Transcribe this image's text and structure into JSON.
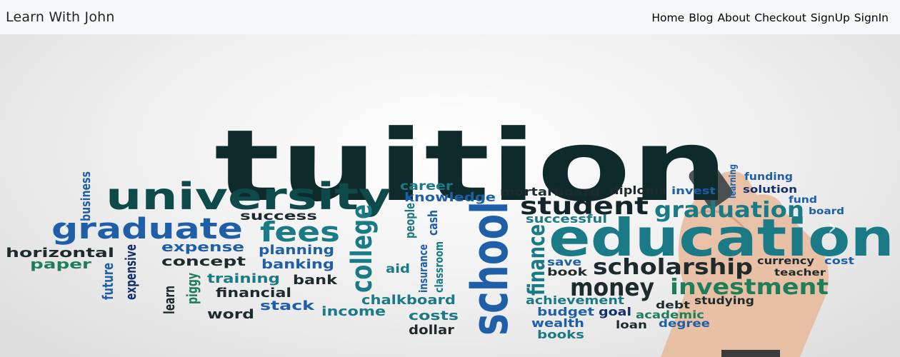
{
  "nav": {
    "brand": "Learn With John",
    "links": [
      "Home",
      "Blog",
      "About",
      "Checkout",
      "SignUp",
      "SignIn"
    ]
  },
  "carousel": {
    "words": {
      "tuition": "tuition",
      "university": "university",
      "graduate": "graduate",
      "fees": "fees",
      "education": "education",
      "student": "student",
      "graduation": "graduation",
      "school": "school",
      "college": "college",
      "scholarship": "scholarship",
      "money": "money",
      "investment": "investment",
      "finance": "finance",
      "horizontal": "horizontal",
      "paper": "paper",
      "business": "business",
      "success": "success",
      "expense": "expense",
      "concept": "concept",
      "planning": "planning",
      "banking": "banking",
      "training": "training",
      "bank": "bank",
      "financial": "financial",
      "stack": "stack",
      "income": "income",
      "word": "word",
      "chalkboard": "chalkboard",
      "costs": "costs",
      "dollar": "dollar",
      "aid": "aid",
      "insurance": "insurance",
      "classroom": "classroom",
      "people": "people",
      "cash": "cash",
      "career": "career",
      "knowledge": "knowledge",
      "mortarboard": "mortarboard",
      "diploma": "diploma",
      "invest": "invest",
      "learning": "learning",
      "funding": "funding",
      "solution": "solution",
      "fund": "fund",
      "board": "board",
      "successful": "successful",
      "save": "save",
      "book": "book",
      "achievement": "achievement",
      "budget": "budget",
      "goal": "goal",
      "academic": "academic",
      "wealth": "wealth",
      "books": "books",
      "loan": "loan",
      "degree": "degree",
      "debt": "debt",
      "studying": "studying",
      "currency": "currency",
      "cost": "cost",
      "teacher": "teacher",
      "future": "future",
      "expensive": "expensive",
      "learn": "learn",
      "piggy": "piggy"
    },
    "prev_icon": "chevron-left-icon",
    "next_icon": "chevron-right-icon"
  },
  "colors": {
    "navbar_bg": "#f8f9fa",
    "dark": "#0f2a2b",
    "teal": "#1a7a86",
    "blue": "#1f5fa8",
    "navy": "#12306b",
    "green": "#1f7d5a",
    "grey": "#2a2a2a"
  }
}
